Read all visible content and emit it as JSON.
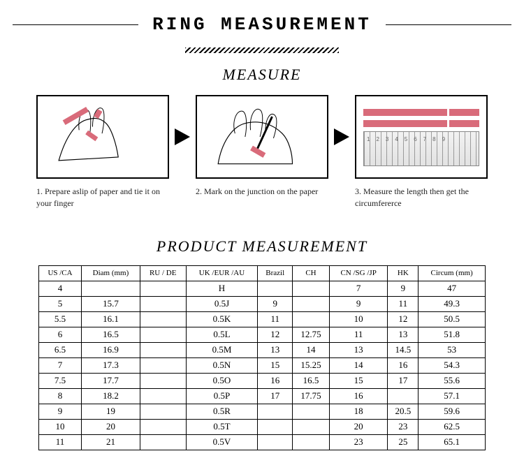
{
  "header": {
    "title": "RING MEASUREMENT"
  },
  "measure": {
    "subtitle": "MEASURE",
    "steps": [
      {
        "caption": "1. Prepare aslip of paper and tie it on your finger"
      },
      {
        "caption": "2. Mark on the junction on the paper"
      },
      {
        "caption": "3. Measure the length then get the circumfererce"
      }
    ],
    "ruler_numbers": "123456789"
  },
  "product": {
    "title": "PRODUCT MEASUREMENT",
    "columns": [
      "US /CA",
      "Diam (mm)",
      "RU / DE",
      "UK /EUR /AU",
      "Brazil",
      "CH",
      "CN /SG /JP",
      "HK",
      "Circum (mm)"
    ],
    "rows": [
      [
        "4",
        "",
        "",
        "H",
        "",
        "",
        "7",
        "9",
        "47"
      ],
      [
        "5",
        "15.7",
        "",
        "0.5J",
        "9",
        "",
        "9",
        "11",
        "49.3"
      ],
      [
        "5.5",
        "16.1",
        "",
        "0.5K",
        "11",
        "",
        "10",
        "12",
        "50.5"
      ],
      [
        "6",
        "16.5",
        "",
        "0.5L",
        "12",
        "12.75",
        "11",
        "13",
        "51.8"
      ],
      [
        "6.5",
        "16.9",
        "",
        "0.5M",
        "13",
        "14",
        "13",
        "14.5",
        "53"
      ],
      [
        "7",
        "17.3",
        "",
        "0.5N",
        "15",
        "15.25",
        "14",
        "16",
        "54.3"
      ],
      [
        "7.5",
        "17.7",
        "",
        "0.5O",
        "16",
        "16.5",
        "15",
        "17",
        "55.6"
      ],
      [
        "8",
        "18.2",
        "",
        "0.5P",
        "17",
        "17.75",
        "16",
        "",
        "57.1"
      ],
      [
        "9",
        "19",
        "",
        "0.5R",
        "",
        "",
        "18",
        "20.5",
        "59.6"
      ],
      [
        "10",
        "20",
        "",
        "0.5T",
        "",
        "",
        "20",
        "23",
        "62.5"
      ],
      [
        "11",
        "21",
        "",
        "0.5V",
        "",
        "",
        "23",
        "25",
        "65.1"
      ]
    ]
  },
  "colors": {
    "accent": "#d96b7a",
    "text": "#000000",
    "border": "#000000",
    "ruler_bg": "#e8e8e8",
    "hatch_fg": "#000000"
  }
}
